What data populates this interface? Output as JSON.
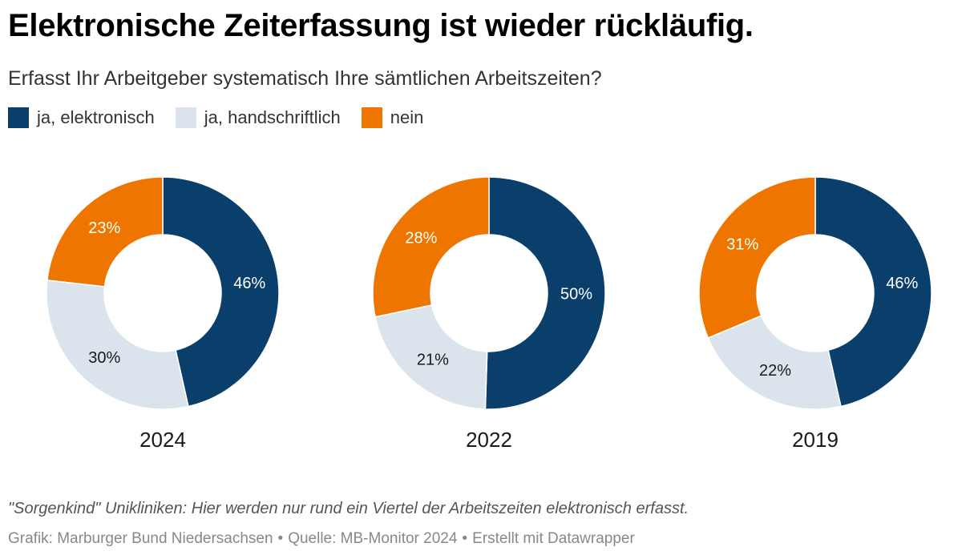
{
  "title": "Elektronische Zeiterfassung ist wieder rückläufig.",
  "subtitle": "Erfasst Ihr Arbeitgeber systematisch Ihre sämtlichen Arbeitszeiten?",
  "legend": [
    {
      "label": "ja, elektronisch",
      "color": "#0b3f6b"
    },
    {
      "label": "ja, handschriftlich",
      "color": "#dbe4ec"
    },
    {
      "label": "nein",
      "color": "#ee7600"
    }
  ],
  "chart_data": [
    {
      "type": "pie",
      "title": "2024",
      "categories": [
        "ja, elektronisch",
        "ja, handschriftlich",
        "nein"
      ],
      "values": [
        46,
        30,
        23
      ],
      "labels": [
        "46%",
        "30%",
        "23%"
      ]
    },
    {
      "type": "pie",
      "title": "2022",
      "categories": [
        "ja, elektronisch",
        "ja, handschriftlich",
        "nein"
      ],
      "values": [
        50,
        21,
        28
      ],
      "labels": [
        "50%",
        "21%",
        "28%"
      ]
    },
    {
      "type": "pie",
      "title": "2019",
      "categories": [
        "ja, elektronisch",
        "ja, handschriftlich",
        "nein"
      ],
      "values": [
        46,
        22,
        31
      ],
      "labels": [
        "46%",
        "22%",
        "31%"
      ]
    }
  ],
  "notes": "\"Sorgenkind\" Unikliniken: Hier werden nur rund ein Viertel der Arbeitszeiten elektronisch erfasst.",
  "footer": {
    "grafik": "Grafik: Marburger Bund Niedersachsen",
    "quelle": "Quelle: MB-Monitor 2024",
    "tool": "Erstellt mit Datawrapper",
    "separator": "•"
  }
}
